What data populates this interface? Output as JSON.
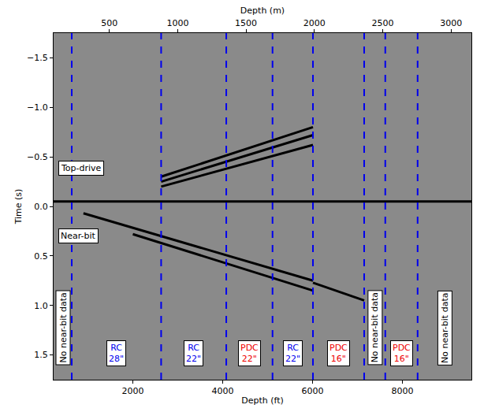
{
  "chart_data": {
    "type": "line",
    "xlabel": "Depth (ft)",
    "x2label": "Depth (m)",
    "ylabel": "Time (s)",
    "xlim": [
      236,
      9537
    ],
    "xticks": [
      2000,
      4000,
      6000,
      8000
    ],
    "x2lim": [
      92,
      3149
    ],
    "x2ticks": [
      500,
      1000,
      1500,
      2000,
      2500,
      3000
    ],
    "ylim": [
      1.75,
      -1.75
    ],
    "yticks": [
      {
        "value": -1.5,
        "label": "−1.5"
      },
      {
        "value": -1.0,
        "label": "−1.0"
      },
      {
        "value": -0.5,
        "label": "−0.5"
      },
      {
        "value": 0.0,
        "label": "0.0"
      },
      {
        "value": 0.5,
        "label": "0.5"
      },
      {
        "value": 1.0,
        "label": "1.0"
      },
      {
        "value": 1.5,
        "label": "1.5"
      }
    ],
    "grid": false,
    "panel_labels": [
      "Top-drive",
      "Near-bit"
    ],
    "series": [
      {
        "color": "#000000",
        "x": [
          236,
          9537
        ],
        "values": [
          -0.05,
          -0.05
        ]
      },
      {
        "color": "#000000",
        "x": [
          2630,
          6010
        ],
        "values": [
          -0.3,
          -0.8
        ]
      },
      {
        "color": "#000000",
        "x": [
          2630,
          6010
        ],
        "values": [
          -0.25,
          -0.72
        ]
      },
      {
        "color": "#000000",
        "x": [
          2630,
          6010
        ],
        "values": [
          -0.2,
          -0.62
        ]
      },
      {
        "color": "#000000",
        "x": [
          900,
          6010
        ],
        "values": [
          0.07,
          0.75
        ]
      },
      {
        "color": "#000000",
        "x": [
          2000,
          6010
        ],
        "values": [
          0.28,
          0.85
        ]
      },
      {
        "color": "#000000",
        "x": [
          6010,
          7150
        ],
        "values": [
          0.77,
          0.95
        ]
      }
    ],
    "boundaries": {
      "x": [
        640,
        2630,
        4080,
        5110,
        6010,
        7150,
        7620,
        8340
      ],
      "color": "#0000ee",
      "line_style": "dashed"
    },
    "sections": [
      {
        "label": "No near-bit data",
        "color": "#000000"
      },
      {
        "label": "RC\n28\"",
        "color": "#0000ee"
      },
      {
        "label": "RC\n22\"",
        "color": "#0000ee"
      },
      {
        "label": "PDC\n22\"",
        "color": "#ee0000"
      },
      {
        "label": "RC\n22\"",
        "color": "#0000ee"
      },
      {
        "label": "PDC\n16\"",
        "color": "#ee0000"
      },
      {
        "label": "No near-bit data",
        "color": "#000000"
      },
      {
        "label": "PDC\n16\"",
        "color": "#ee0000"
      },
      {
        "label": "No near-bit data",
        "color": "#000000"
      }
    ]
  }
}
